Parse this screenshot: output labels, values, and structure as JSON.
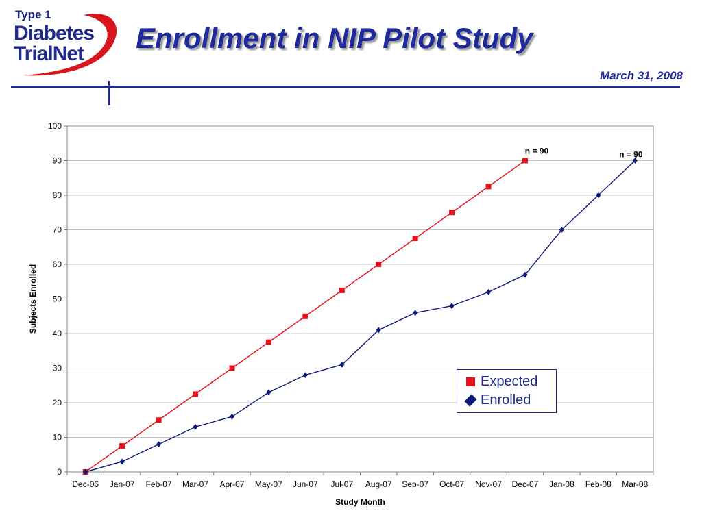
{
  "header": {
    "title": "Enrollment in NIP Pilot Study",
    "date": "March 31, 2008",
    "logo": {
      "line1": "Type 1",
      "line2": "Diabetes",
      "line3": "TrialNet"
    }
  },
  "colors": {
    "expected": "#e8101a",
    "enrolled": "#0d1a7a",
    "brand": "#1f2a8c",
    "grid": "#bfbfbf"
  },
  "chart_data": {
    "type": "line",
    "title": "",
    "xlabel": "Study Month",
    "ylabel": "Subjects Enrolled",
    "ylim": [
      0,
      100
    ],
    "yticks": [
      0,
      10,
      20,
      30,
      40,
      50,
      60,
      70,
      80,
      90,
      100
    ],
    "grid": true,
    "legend_placement": "bottom-right",
    "categories": [
      "Dec-06",
      "Jan-07",
      "Feb-07",
      "Mar-07",
      "Apr-07",
      "May-07",
      "Jun-07",
      "Jul-07",
      "Aug-07",
      "Sep-07",
      "Oct-07",
      "Nov-07",
      "Dec-07",
      "Jan-08",
      "Feb-08",
      "Mar-08"
    ],
    "series": [
      {
        "name": "Expected",
        "marker": "square",
        "values": [
          0,
          7.5,
          15,
          22.5,
          30,
          37.5,
          45,
          52.5,
          60,
          67.5,
          75,
          82.5,
          90,
          null,
          null,
          null
        ]
      },
      {
        "name": "Enrolled",
        "marker": "diamond",
        "values": [
          0,
          3,
          8,
          13,
          16,
          23,
          28,
          31,
          41,
          46,
          48,
          52,
          57,
          70,
          80,
          90
        ]
      }
    ],
    "annotations": [
      {
        "text": "n = 90",
        "category": "Dec-07",
        "value": 90
      },
      {
        "text": "n = 90",
        "category": "Mar-08",
        "value": 90
      }
    ]
  }
}
